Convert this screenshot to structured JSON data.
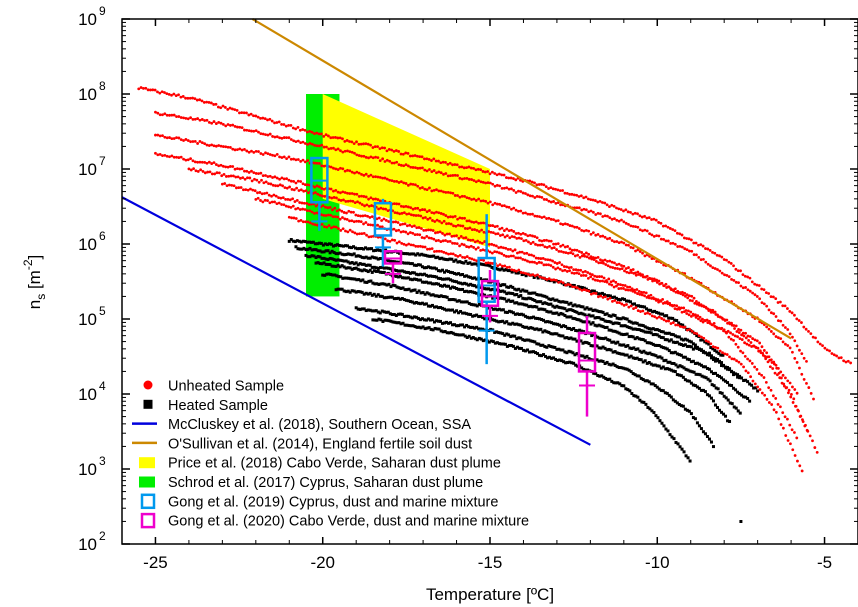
{
  "chart_data": {
    "type": "scatter",
    "xlabel": "Temperature [ºC]",
    "ylabel": "n",
    "ylabel_sub": "s",
    "ylabel_unit_open": " [m",
    "ylabel_unit_exp": "-2",
    "ylabel_unit_close": "]",
    "xlim": [
      -26,
      -4
    ],
    "ylim_log10": [
      2,
      9
    ],
    "x_ticks": [
      {
        "value": -25,
        "label": "-25"
      },
      {
        "value": -20,
        "label": "-20"
      },
      {
        "value": -15,
        "label": "-15"
      },
      {
        "value": -10,
        "label": "-10"
      },
      {
        "value": -5,
        "label": "-5"
      }
    ],
    "y_ticks": [
      {
        "exp": 2,
        "base": "10",
        "sup": "2"
      },
      {
        "exp": 3,
        "base": "10",
        "sup": "3"
      },
      {
        "exp": 4,
        "base": "10",
        "sup": "4"
      },
      {
        "exp": 5,
        "base": "10",
        "sup": "5"
      },
      {
        "exp": 6,
        "base": "10",
        "sup": "6"
      },
      {
        "exp": 7,
        "base": "10",
        "sup": "7"
      },
      {
        "exp": 8,
        "base": "10",
        "sup": "8"
      },
      {
        "exp": 9,
        "base": "10",
        "sup": "9"
      }
    ],
    "unheated_series": [
      {
        "x": [
          -25.5,
          -24,
          -22,
          -20,
          -18,
          -16,
          -14,
          -12,
          -10,
          -8,
          -6,
          -5,
          -4.2
        ],
        "log_y": [
          8.08,
          7.95,
          7.7,
          7.45,
          7.25,
          7.05,
          6.85,
          6.6,
          6.3,
          5.8,
          5.1,
          4.6,
          4.4
        ]
      },
      {
        "x": [
          -25,
          -23,
          -21,
          -19,
          -17,
          -15,
          -13,
          -11,
          -9,
          -7,
          -6,
          -5.5
        ],
        "log_y": [
          7.75,
          7.6,
          7.4,
          7.2,
          7.0,
          6.8,
          6.55,
          6.3,
          5.9,
          5.3,
          4.8,
          4.4
        ]
      },
      {
        "x": [
          -25,
          -23,
          -21,
          -19,
          -17,
          -15,
          -13,
          -11,
          -9,
          -7,
          -6,
          -5.3
        ],
        "log_y": [
          7.45,
          7.3,
          7.15,
          6.95,
          6.75,
          6.55,
          6.3,
          6.0,
          5.55,
          5.0,
          4.6,
          3.9
        ]
      },
      {
        "x": [
          -25,
          -23,
          -21,
          -19,
          -17,
          -15,
          -13,
          -11,
          -9,
          -7,
          -5.8
        ],
        "log_y": [
          7.2,
          7.05,
          6.85,
          6.65,
          6.45,
          6.25,
          6.0,
          5.7,
          5.3,
          4.7,
          4.0
        ]
      },
      {
        "x": [
          -24,
          -22,
          -20,
          -18,
          -16,
          -14,
          -12,
          -10,
          -8,
          -6.5,
          -5.5
        ],
        "log_y": [
          7.0,
          6.85,
          6.65,
          6.45,
          6.25,
          6.05,
          5.8,
          5.5,
          5.0,
          4.4,
          3.5
        ]
      },
      {
        "x": [
          -23,
          -21,
          -19,
          -17,
          -15,
          -13,
          -11,
          -9,
          -7,
          -6,
          -5.2
        ],
        "log_y": [
          6.8,
          6.6,
          6.4,
          6.2,
          6.0,
          5.75,
          5.45,
          5.1,
          4.6,
          4.0,
          3.2
        ]
      },
      {
        "x": [
          -22,
          -20,
          -18,
          -16,
          -14,
          -12,
          -10,
          -8,
          -6.8,
          -5.8
        ],
        "log_y": [
          6.6,
          6.4,
          6.2,
          6.0,
          5.8,
          5.55,
          5.25,
          4.85,
          4.2,
          3.4
        ]
      },
      {
        "x": [
          -21,
          -19,
          -17,
          -15,
          -13,
          -11,
          -9,
          -7.5,
          -6.5,
          -5.6
        ],
        "log_y": [
          6.35,
          6.15,
          5.95,
          5.75,
          5.5,
          5.2,
          4.85,
          4.4,
          3.8,
          2.9
        ]
      }
    ],
    "heated_series": [
      {
        "x": [
          -21,
          -19,
          -17,
          -15,
          -13,
          -11,
          -9.5,
          -8
        ],
        "log_y": [
          6.05,
          5.95,
          5.85,
          5.7,
          5.5,
          5.25,
          5.0,
          4.5
        ]
      },
      {
        "x": [
          -20.8,
          -19,
          -17,
          -15,
          -13,
          -11,
          -9,
          -7.5
        ],
        "log_y": [
          5.95,
          5.85,
          5.7,
          5.5,
          5.25,
          5.0,
          4.7,
          4.2
        ]
      },
      {
        "x": [
          -20.5,
          -18.5,
          -16.5,
          -14.5,
          -12.5,
          -10.5,
          -8.5,
          -7
        ],
        "log_y": [
          5.85,
          5.7,
          5.55,
          5.35,
          5.1,
          4.85,
          4.55,
          4.05
        ]
      },
      {
        "x": [
          -20.2,
          -18,
          -16,
          -14,
          -12,
          -10,
          -8.5,
          -7.2
        ],
        "log_y": [
          5.75,
          5.6,
          5.4,
          5.2,
          4.95,
          4.65,
          4.35,
          3.9
        ]
      },
      {
        "x": [
          -20,
          -18,
          -16,
          -14,
          -12,
          -10,
          -8.5,
          -7.5
        ],
        "log_y": [
          5.6,
          5.45,
          5.25,
          5.05,
          4.8,
          4.5,
          4.2,
          3.75
        ]
      },
      {
        "x": [
          -19.6,
          -17.5,
          -15.5,
          -13.5,
          -11.5,
          -9.5,
          -8.5,
          -7.8
        ],
        "log_y": [
          5.4,
          5.25,
          5.05,
          4.85,
          4.6,
          4.3,
          4.0,
          3.6
        ]
      },
      {
        "x": [
          -19,
          -17,
          -15,
          -13,
          -11,
          -10,
          -9,
          -8.3
        ],
        "log_y": [
          5.15,
          5.0,
          4.85,
          4.6,
          4.35,
          4.1,
          3.75,
          3.3
        ]
      },
      {
        "x": [
          -18.5,
          -16.5,
          -14.5,
          -12.5,
          -11,
          -10.2,
          -9.5,
          -9
        ],
        "log_y": [
          5.0,
          4.85,
          4.65,
          4.4,
          4.1,
          3.8,
          3.4,
          3.1
        ]
      }
    ],
    "heated_isolated_point": {
      "x": -7.5,
      "log_y": 2.3
    },
    "mccluskey_line": {
      "x": [
        -26,
        -12
      ],
      "y": [
        4200000,
        2100
      ]
    },
    "osullivan_line": {
      "x": [
        -22.1,
        -6
      ],
      "y": [
        1000000000,
        55000
      ]
    },
    "price_region": {
      "x": [
        -20,
        -20,
        -15,
        -15
      ],
      "y": [
        100000000,
        4000000,
        900000,
        10000000
      ]
    },
    "schrod_region": {
      "x": [
        -20.5,
        -19.5
      ],
      "y": [
        200000,
        100000000
      ]
    },
    "gong2019_boxes": [
      {
        "x": -20.1,
        "whisker_low": 1500000,
        "q1": 2000000,
        "q25": 3600000,
        "median": 7000000,
        "q75": 14000000,
        "whisker_high": 14000000
      },
      {
        "x": -18.2,
        "whisker_low": 500000,
        "q1": 900000,
        "q25": 1300000,
        "median": 1600000,
        "q75": 3500000,
        "whisker_high": 4000000
      },
      {
        "x": -15.1,
        "whisker_low": 25000,
        "q1": 70000,
        "q25": 170000,
        "median": 280000,
        "q75": 650000,
        "whisker_high": 2500000
      }
    ],
    "gong2020_boxes": [
      {
        "x": -17.9,
        "whisker_low": 300000,
        "q1": 400000,
        "q25": 550000,
        "median": 640000,
        "q75": 800000,
        "whisker_high": 800000
      },
      {
        "x": -15.0,
        "whisker_low": 90000,
        "q1": 110000,
        "q25": 150000,
        "median": 200000,
        "q75": 320000,
        "whisker_high": 450000
      },
      {
        "x": -12.1,
        "whisker_low": 5000,
        "q1": 13000,
        "q25": 20000,
        "median": 28000,
        "q75": 65000,
        "whisker_high": 110000
      }
    ],
    "legend_position": "bottom-left",
    "legend": [
      {
        "label": "Unheated Sample",
        "symbol": "dot",
        "color": "#ff0000"
      },
      {
        "label": "Heated Sample",
        "symbol": "square",
        "color": "#000000"
      },
      {
        "label": "McCluskey et al. (2018), Southern Ocean, SSA",
        "symbol": "line",
        "color": "#0000dd"
      },
      {
        "label": "O'Sullivan et al. (2014), England fertile soil dust",
        "symbol": "line",
        "color": "#cc8800"
      },
      {
        "label": "Price et al. (2018) Cabo Verde, Saharan dust plume",
        "symbol": "fill",
        "color": "#ffff00"
      },
      {
        "label": "Schrod et al. (2017) Cyprus, Saharan dust plume",
        "symbol": "fill",
        "color": "#00ee00"
      },
      {
        "label": "Gong et al. (2019) Cyprus, dust and marine mixture",
        "symbol": "box",
        "color": "#0099ee"
      },
      {
        "label": "Gong et al. (2020) Cabo Verde, dust and marine mixture",
        "symbol": "box",
        "color": "#ee00cc"
      }
    ]
  }
}
